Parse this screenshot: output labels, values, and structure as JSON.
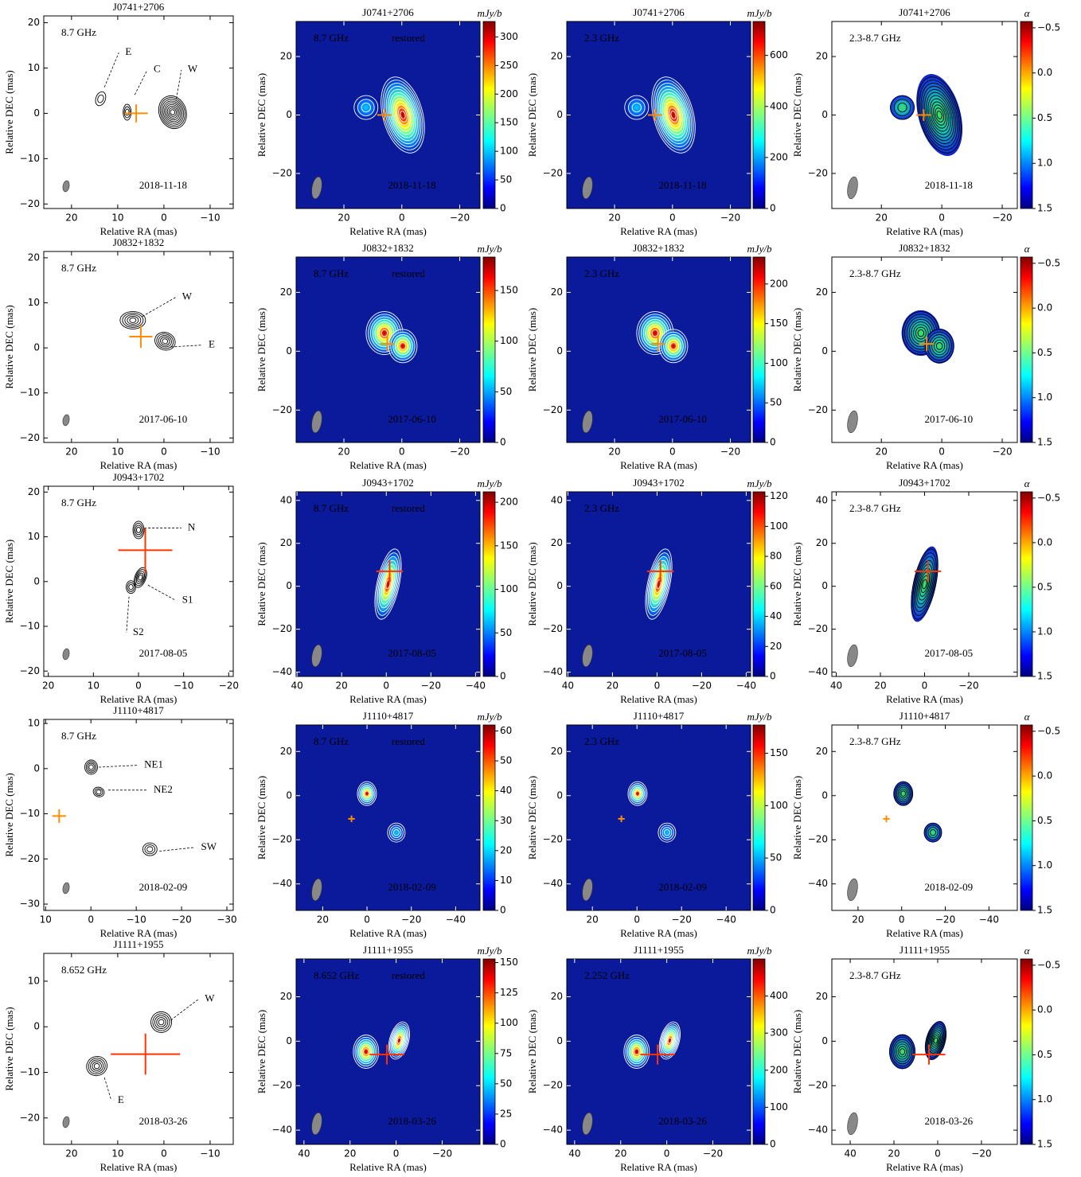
{
  "chart_data": [
    {
      "type": "contour",
      "title": "J0741+2706",
      "xlabel": "Relative RA (mas)",
      "ylabel": "Relative DEC (mas)",
      "xlim": [
        26,
        -15
      ],
      "ylim": [
        -21,
        21.5
      ],
      "xticks": [
        20,
        10,
        0,
        {
          "value": -10,
          "label": "−10"
        }
      ],
      "yticks": [
        20,
        10,
        0,
        {
          "value": -10,
          "label": "−10"
        },
        {
          "value": -20,
          "label": "−20"
        }
      ],
      "frequency": "8.7 GHz",
      "date": "2018-11-18",
      "labels": [
        "E",
        "C",
        "W"
      ],
      "marker": {
        "x": 6,
        "y": 0,
        "xerr": 2.5,
        "yerr": 2,
        "color": "#ff8c00"
      }
    },
    {
      "type": "image",
      "title": "J0741+2706",
      "xlabel": "Relative RA (mas)",
      "ylabel": "Relative DEC (mas)",
      "xlim": [
        36.5,
        -27
      ],
      "ylim": [
        -32,
        32
      ],
      "xticks": [
        20,
        0,
        {
          "value": -20,
          "label": "−20"
        }
      ],
      "yticks": [
        20,
        0,
        {
          "value": -20,
          "label": "−20"
        }
      ],
      "frequency": "8.7 GHz",
      "mode": "restored",
      "date": "2018-11-18",
      "marker": {
        "x": 6,
        "y": 0,
        "xerr": 2.5,
        "yerr": 2,
        "color": "#ff8c00"
      },
      "colorbar": {
        "label": "mJy/b",
        "lim": [
          0,
          327
        ],
        "ticks": [
          0,
          50,
          100,
          150,
          200,
          250,
          300
        ]
      }
    },
    {
      "type": "image",
      "title": "J0741+2706",
      "xlabel": "Relative RA (mas)",
      "ylabel": "Relative DEC (mas)",
      "xlim": [
        36.5,
        -27
      ],
      "ylim": [
        -32,
        32
      ],
      "xticks": [
        20,
        0,
        {
          "value": -20,
          "label": "−20"
        }
      ],
      "yticks": [
        20,
        0,
        {
          "value": -20,
          "label": "−20"
        }
      ],
      "frequency": "2.3 GHz",
      "date": "2018-11-18",
      "marker": {
        "x": 6,
        "y": 0,
        "xerr": 2.5,
        "yerr": 2,
        "color": "#ff8c00"
      },
      "colorbar": {
        "label": "mJy/b",
        "lim": [
          0,
          733
        ],
        "ticks": [
          0,
          200,
          400,
          600
        ]
      }
    },
    {
      "type": "spectral_index",
      "title": "J0741+2706",
      "xlabel": "Relative RA (mas)",
      "ylabel": "Relative DEC (mas)",
      "xlim": [
        36.4,
        -25
      ],
      "ylim": [
        -32,
        32
      ],
      "xticks": [
        20,
        0,
        {
          "value": -20,
          "label": "−20"
        }
      ],
      "yticks": [
        20,
        0,
        {
          "value": -20,
          "label": "−20"
        }
      ],
      "frequency": "2.3-8.7 GHz",
      "date": "2018-11-18",
      "marker": {
        "x": 6,
        "y": 0,
        "xerr": 2.5,
        "yerr": 2,
        "color": "#ff8c00"
      },
      "colorbar": {
        "label": "α",
        "lim": [
          1.5,
          -0.57
        ],
        "ticks": [
          {
            "value": -0.5,
            "label": "−0.5"
          },
          {
            "value": 0,
            "label": "0.0"
          },
          0.5,
          {
            "value": 1,
            "label": "1.0"
          },
          1.5
        ]
      }
    },
    {
      "type": "contour",
      "title": "J0832+1832",
      "xlabel": "Relative RA (mas)",
      "ylabel": "Relative DEC (mas)",
      "xlim": [
        26,
        -15
      ],
      "ylim": [
        -21,
        21.4
      ],
      "xticks": [
        20,
        10,
        0,
        {
          "value": -10,
          "label": "−10"
        }
      ],
      "yticks": [
        20,
        10,
        0,
        {
          "value": -10,
          "label": "−10"
        },
        {
          "value": -20,
          "label": "−20"
        }
      ],
      "frequency": "8.7 GHz",
      "date": "2017-06-10",
      "labels": [
        "W",
        "E"
      ],
      "marker": {
        "x": 5,
        "y": 2.5,
        "xerr": 2.5,
        "yerr": 2.5,
        "color": "#ff8c00"
      }
    },
    {
      "type": "image",
      "title": "J0832+1832",
      "xlabel": "Relative RA (mas)",
      "ylabel": "Relative DEC (mas)",
      "xlim": [
        36.5,
        -27
      ],
      "ylim": [
        -31,
        32
      ],
      "xticks": [
        20,
        0,
        {
          "value": -20,
          "label": "−20"
        }
      ],
      "yticks": [
        20,
        0,
        {
          "value": -20,
          "label": "−20"
        }
      ],
      "frequency": "8.7 GHz",
      "mode": "restored",
      "date": "2017-06-10",
      "marker": {
        "x": 5,
        "y": 2.5,
        "xerr": 2.5,
        "yerr": 2.5,
        "color": "#ff8c00"
      },
      "colorbar": {
        "label": "mJy/b",
        "lim": [
          0,
          183
        ],
        "ticks": [
          0,
          50,
          100,
          150
        ]
      }
    },
    {
      "type": "image",
      "title": "J0832+1832",
      "xlabel": "Relative RA (mas)",
      "ylabel": "Relative DEC (mas)",
      "xlim": [
        36.5,
        -27
      ],
      "ylim": [
        -31,
        32
      ],
      "xticks": [
        20,
        0,
        {
          "value": -20,
          "label": "−20"
        }
      ],
      "yticks": [
        20,
        0,
        {
          "value": -20,
          "label": "−20"
        }
      ],
      "frequency": "2.3 GHz",
      "date": "2017-06-10",
      "marker": {
        "x": 5,
        "y": 2.5,
        "xerr": 2.5,
        "yerr": 2.5,
        "color": "#ff8c00"
      },
      "colorbar": {
        "label": "mJy/b",
        "lim": [
          0,
          234
        ],
        "ticks": [
          0,
          50,
          100,
          150,
          200
        ]
      }
    },
    {
      "type": "spectral_index",
      "title": "J0832+1832",
      "xlabel": "Relative RA (mas)",
      "ylabel": "Relative DEC (mas)",
      "xlim": [
        36.4,
        -25
      ],
      "ylim": [
        -31,
        32
      ],
      "xticks": [
        20,
        0,
        {
          "value": -20,
          "label": "−20"
        }
      ],
      "yticks": [
        20,
        0,
        {
          "value": -20,
          "label": "−20"
        }
      ],
      "frequency": "2.3-8.7 GHz",
      "date": "2017-06-10",
      "marker": {
        "x": 5,
        "y": 2.5,
        "xerr": 2.5,
        "yerr": 2.5,
        "color": "#ff8c00"
      },
      "colorbar": {
        "label": "α",
        "lim": [
          1.5,
          -0.57
        ],
        "ticks": [
          {
            "value": -0.5,
            "label": "−0.5"
          },
          {
            "value": 0,
            "label": "0.0"
          },
          0.5,
          {
            "value": 1,
            "label": "1.0"
          },
          1.5
        ]
      }
    },
    {
      "type": "contour",
      "title": "J0943+1702",
      "xlabel": "Relative RA (mas)",
      "ylabel": "Relative DEC (mas)",
      "xlim": [
        21,
        -21
      ],
      "ylim": [
        -21.2,
        21.3
      ],
      "xticks": [
        20,
        10,
        0,
        {
          "value": -10,
          "label": "−10"
        },
        {
          "value": -20,
          "label": "−20"
        }
      ],
      "yticks": [
        20,
        10,
        0,
        {
          "value": -10,
          "label": "−10"
        },
        {
          "value": -20,
          "label": "−20"
        }
      ],
      "frequency": "8.7 GHz",
      "date": "2017-08-05",
      "labels": [
        "N",
        "S1",
        "S2"
      ],
      "marker": {
        "x": -1.5,
        "y": 7,
        "xerr": 6,
        "yerr": 5,
        "color": "#ff3300"
      }
    },
    {
      "type": "image",
      "title": "J0943+1702",
      "xlabel": "Relative RA (mas)",
      "ylabel": "Relative DEC (mas)",
      "xlim": [
        40.4,
        -42
      ],
      "ylim": [
        -42,
        44
      ],
      "xticks": [
        40,
        20,
        0,
        {
          "value": -20,
          "label": "−20"
        },
        {
          "value": -40,
          "label": "−40"
        }
      ],
      "yticks": [
        40,
        20,
        0,
        {
          "value": -20,
          "label": "−20"
        },
        {
          "value": -40,
          "label": "−40"
        }
      ],
      "frequency": "8.7 GHz",
      "mode": "restored",
      "date": "2017-08-05",
      "marker": {
        "x": -1.5,
        "y": 7,
        "xerr": 6,
        "yerr": 5,
        "color": "#ff3300"
      },
      "colorbar": {
        "label": "mJy/b",
        "lim": [
          0,
          212
        ],
        "ticks": [
          0,
          50,
          100,
          150,
          200
        ]
      }
    },
    {
      "type": "image",
      "title": "J0943+1702",
      "xlabel": "Relative RA (mas)",
      "ylabel": "Relative DEC (mas)",
      "xlim": [
        40.5,
        -42
      ],
      "ylim": [
        -42,
        44
      ],
      "xticks": [
        40,
        20,
        0,
        {
          "value": -20,
          "label": "−20"
        },
        {
          "value": -40,
          "label": "−40"
        }
      ],
      "yticks": [
        40,
        20,
        0,
        {
          "value": -20,
          "label": "−20"
        },
        {
          "value": -40,
          "label": "−40"
        }
      ],
      "frequency": "2.3 GHz",
      "date": "2017-08-05",
      "marker": {
        "x": -1.5,
        "y": 7,
        "xerr": 6,
        "yerr": 5,
        "color": "#ff3300"
      },
      "colorbar": {
        "label": "mJy/b",
        "lim": [
          0,
          123
        ],
        "ticks": [
          0,
          20,
          40,
          60,
          80,
          100,
          120
        ]
      }
    },
    {
      "type": "spectral_index",
      "title": "J0943+1702",
      "xlabel": "Relative RA (mas)",
      "ylabel": "Relative DEC (mas)",
      "xlim": [
        42,
        -42
      ],
      "ylim": [
        -42,
        44
      ],
      "xticks": [
        40,
        20,
        0,
        {
          "value": -20,
          "label": "−20"
        }
      ],
      "yticks": [
        40,
        20,
        0,
        {
          "value": -20,
          "label": "−20"
        },
        {
          "value": -40,
          "label": "−40"
        }
      ],
      "frequency": "2.3-8.7 GHz",
      "date": "2017-08-05",
      "marker": {
        "x": -1.5,
        "y": 7,
        "xerr": 6,
        "yerr": 5,
        "color": "#ff3300"
      },
      "colorbar": {
        "label": "α",
        "lim": [
          1.5,
          -0.57
        ],
        "ticks": [
          {
            "value": -0.5,
            "label": "−0.5"
          },
          {
            "value": 0,
            "label": "0.0"
          },
          0.5,
          {
            "value": 1,
            "label": "1.0"
          },
          1.5
        ]
      }
    },
    {
      "type": "contour",
      "title": "J1110+4817",
      "xlabel": "Relative RA (mas)",
      "ylabel": "Relative DEC (mas)",
      "xlim": [
        10.4,
        -31.4
      ],
      "ylim": [
        -31.4,
        10.9
      ],
      "xticks": [
        10,
        0,
        {
          "value": -10,
          "label": "−10"
        },
        {
          "value": -20,
          "label": "−20"
        },
        {
          "value": -30,
          "label": "−30"
        }
      ],
      "yticks": [
        10,
        0,
        {
          "value": -10,
          "label": "−10"
        },
        {
          "value": -20,
          "label": "−20"
        },
        {
          "value": -30,
          "label": "−30"
        }
      ],
      "frequency": "8.7 GHz",
      "date": "2018-02-09",
      "labels": [
        "NE1",
        "NE2",
        "SW"
      ],
      "marker": {
        "x": 7,
        "y": -10.5,
        "xerr": 1.5,
        "yerr": 1.5,
        "color": "#ff8c00"
      }
    },
    {
      "type": "image",
      "title": "J1110+4817",
      "xlabel": "Relative RA (mas)",
      "ylabel": "Relative DEC (mas)",
      "xlim": [
        32,
        -51
      ],
      "ylim": [
        -52,
        32
      ],
      "xticks": [
        20,
        0,
        {
          "value": -20,
          "label": "−20"
        },
        {
          "value": -40,
          "label": "−40"
        }
      ],
      "yticks": [
        20,
        0,
        {
          "value": -20,
          "label": "−20"
        },
        {
          "value": -40,
          "label": "−40"
        }
      ],
      "frequency": "8.7 GHz",
      "mode": "restored",
      "date": "2018-02-09",
      "marker": {
        "x": 7,
        "y": -10.5,
        "xerr": 1.5,
        "yerr": 1.5,
        "color": "#ff8c00"
      },
      "colorbar": {
        "label": "mJy/b",
        "lim": [
          0,
          62
        ],
        "ticks": [
          0,
          10,
          20,
          30,
          40,
          50,
          60
        ]
      }
    },
    {
      "type": "image",
      "title": "J1110+4817",
      "xlabel": "Relative RA (mas)",
      "ylabel": "Relative DEC (mas)",
      "xlim": [
        31.5,
        -51
      ],
      "ylim": [
        -52,
        32
      ],
      "xticks": [
        20,
        0,
        {
          "value": -20,
          "label": "−20"
        },
        {
          "value": -40,
          "label": "−40"
        }
      ],
      "yticks": [
        20,
        0,
        {
          "value": -20,
          "label": "−20"
        },
        {
          "value": -40,
          "label": "−40"
        }
      ],
      "frequency": "2.3 GHz",
      "date": "2018-02-09",
      "marker": {
        "x": 7,
        "y": -10.5,
        "xerr": 1.5,
        "yerr": 1.5,
        "color": "#ff8c00"
      },
      "colorbar": {
        "label": "mJy/b",
        "lim": [
          0,
          177
        ],
        "ticks": [
          0,
          50,
          100,
          150
        ]
      }
    },
    {
      "type": "spectral_index",
      "title": "J1110+4817",
      "xlabel": "Relative RA (mas)",
      "ylabel": "Relative DEC (mas)",
      "xlim": [
        32,
        -53
      ],
      "ylim": [
        -52,
        32
      ],
      "xticks": [
        20,
        0,
        {
          "value": -20,
          "label": "−20"
        },
        {
          "value": -40,
          "label": "−40"
        }
      ],
      "yticks": [
        20,
        0,
        {
          "value": -20,
          "label": "−20"
        },
        {
          "value": -40,
          "label": "−40"
        }
      ],
      "frequency": "2.3-8.7 GHz",
      "date": "2018-02-09",
      "marker": {
        "x": 7,
        "y": -10.5,
        "xerr": 1.5,
        "yerr": 1.5,
        "color": "#ff8c00"
      },
      "colorbar": {
        "label": "α",
        "lim": [
          1.5,
          -0.57
        ],
        "ticks": [
          {
            "value": -0.5,
            "label": "−0.5"
          },
          {
            "value": 0,
            "label": "0.0"
          },
          0.5,
          {
            "value": 1,
            "label": "1.0"
          },
          1.5
        ]
      }
    },
    {
      "type": "contour",
      "title": "J1111+1955",
      "xlabel": "Relative RA (mas)",
      "ylabel": "Relative DEC (mas)",
      "xlim": [
        26,
        -15
      ],
      "ylim": [
        -25.8,
        16.1
      ],
      "xticks": [
        20,
        10,
        0,
        {
          "value": -10,
          "label": "−10"
        }
      ],
      "yticks": [
        10,
        0,
        {
          "value": -10,
          "label": "−10"
        },
        {
          "value": -20,
          "label": "−20"
        }
      ],
      "frequency": "8.652 GHz",
      "date": "2018-03-26",
      "labels": [
        "W",
        "E"
      ],
      "marker": {
        "x": 4,
        "y": -6,
        "xerr": 7.5,
        "yerr": 4.5,
        "color": "#ff3300"
      }
    },
    {
      "type": "image",
      "title": "J1111+1955",
      "xlabel": "Relative RA (mas)",
      "ylabel": "Relative DEC (mas)",
      "xlim": [
        43.4,
        -36.4
      ],
      "ylim": [
        -46.4,
        37
      ],
      "xticks": [
        40,
        20,
        0,
        {
          "value": -20,
          "label": "−20"
        }
      ],
      "yticks": [
        20,
        0,
        {
          "value": -20,
          "label": "−20"
        },
        {
          "value": -40,
          "label": "−40"
        }
      ],
      "frequency": "8.652 GHz",
      "mode": "restored",
      "date": "2018-03-26",
      "marker": {
        "x": 4,
        "y": -6,
        "xerr": 7.5,
        "yerr": 4.5,
        "color": "#ff3300"
      },
      "colorbar": {
        "label": "mJy/b",
        "lim": [
          0,
          153
        ],
        "ticks": [
          0,
          25,
          50,
          75,
          100,
          125,
          150
        ]
      }
    },
    {
      "type": "image",
      "title": "J1111+1955",
      "xlabel": "Relative RA (mas)",
      "ylabel": "Relative DEC (mas)",
      "xlim": [
        43.4,
        -36.4
      ],
      "ylim": [
        -46.4,
        37
      ],
      "xticks": [
        40,
        20,
        0,
        {
          "value": -20,
          "label": "−20"
        }
      ],
      "yticks": [
        20,
        0,
        {
          "value": -20,
          "label": "−20"
        },
        {
          "value": -40,
          "label": "−40"
        }
      ],
      "frequency": "2.252 GHz",
      "date": "2018-03-26",
      "marker": {
        "x": 4,
        "y": -6,
        "xerr": 7.5,
        "yerr": 4.5,
        "color": "#ff3300"
      },
      "colorbar": {
        "label": "mJy/b",
        "lim": [
          0,
          500
        ],
        "ticks": [
          0,
          100,
          200,
          300,
          400
        ]
      }
    },
    {
      "type": "spectral_index",
      "title": "J1111+1955",
      "xlabel": "Relative RA (mas)",
      "ylabel": "Relative DEC (mas)",
      "xlim": [
        48.4,
        -36.4
      ],
      "ylim": [
        -46.4,
        37
      ],
      "xticks": [
        40,
        20,
        0,
        {
          "value": -20,
          "label": "−20"
        }
      ],
      "yticks": [
        20,
        0,
        {
          "value": -20,
          "label": "−20"
        },
        {
          "value": -40,
          "label": "−40"
        }
      ],
      "frequency": "2.3-8.7 GHz",
      "date": "2018-03-26",
      "marker": {
        "x": 4,
        "y": -6,
        "xerr": 7.5,
        "yerr": 4.5,
        "color": "#ff3300"
      },
      "colorbar": {
        "label": "α",
        "lim": [
          1.5,
          -0.57
        ],
        "ticks": [
          {
            "value": -0.5,
            "label": "−0.5"
          },
          {
            "value": 0,
            "label": "0.0"
          },
          0.5,
          {
            "value": 1,
            "label": "1.0"
          },
          1.5
        ]
      }
    }
  ]
}
